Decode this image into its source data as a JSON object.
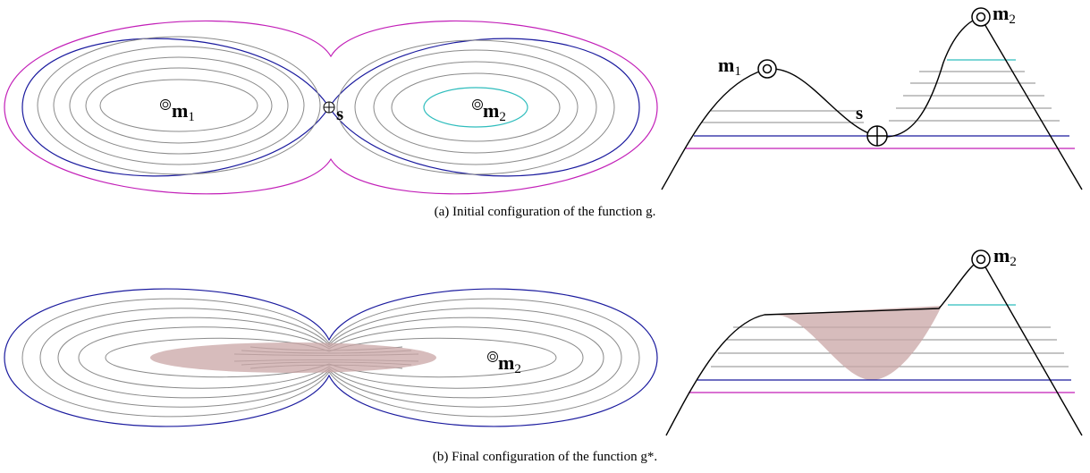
{
  "labels": {
    "m1": "m",
    "m1_sub": "1",
    "m2": "m",
    "m2_sub": "2",
    "s": "s"
  },
  "captions": {
    "a": "(a)  Initial configuration of the function g.",
    "b": "(b)  Final configuration of the function g*."
  },
  "colors": {
    "magenta": "#c21fb8",
    "blue": "#1a1a9e",
    "cyan": "#2fbdbd",
    "gray": "#8a8a8a",
    "shade": "#c9a5a5"
  }
}
